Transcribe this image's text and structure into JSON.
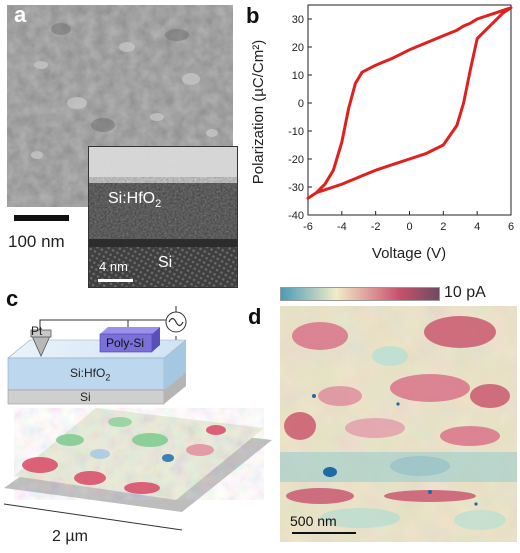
{
  "panels": {
    "a": {
      "letter": "a",
      "sem_scale_label": "100 nm",
      "tem_film_label_main": "Si:HfO",
      "tem_film_label_sub": "2",
      "tem_substrate_label": "Si",
      "tem_scale_label": "4 nm"
    },
    "b": {
      "letter": "b"
    },
    "c": {
      "letter": "c",
      "probe_label": "Pt",
      "electrode_label": "Poly-Si",
      "film_label_main": "Si:HfO",
      "film_label_sub": "2",
      "substrate_label": "Si",
      "scale_label": "2 µm"
    },
    "d": {
      "letter": "d",
      "colorbar_max_label": "10 pA",
      "scale_label": "500 nm"
    }
  },
  "colors": {
    "loop": "#e0201e",
    "colorbar_low": "#4a9bb5",
    "colorbar_mid": "#f1ecc9",
    "colorbar_high": "#c9516b",
    "colorbar_top": "#6f4a63",
    "electrode": "#7b6fd9",
    "film": "#c6dff3"
  },
  "chart_data": {
    "type": "line",
    "title": "",
    "xlabel": "Voltage (V)",
    "ylabel": "Polarization (µC/Cm²)",
    "xlim": [
      -6,
      6
    ],
    "ylim": [
      -40,
      35
    ],
    "xticks": [
      -6,
      -4,
      -2,
      0,
      2,
      4,
      6
    ],
    "yticks": [
      -40,
      -30,
      -20,
      -10,
      0,
      10,
      20,
      30
    ],
    "grid": false,
    "series": [
      {
        "x": [
          -6,
          -5.5,
          -5,
          -4.5,
          -4,
          -3.6,
          -3.2,
          -2.8,
          -2,
          -1,
          0,
          1,
          2,
          2.8,
          3.2,
          3.6,
          4,
          4.5,
          5,
          5.5,
          6,
          5.5,
          5,
          4.5,
          4,
          3.6,
          3.2,
          2.8,
          2,
          1,
          0,
          -1,
          -2,
          -2.8,
          -3.2,
          -3.6,
          -4,
          -4.5,
          -5,
          -5.5,
          -6
        ],
        "y": [
          -34,
          -32,
          -29,
          -24,
          -14,
          -2,
          7,
          11,
          13.5,
          16,
          19,
          21.5,
          24,
          26,
          27.5,
          28.5,
          30,
          31,
          32,
          33,
          34,
          32,
          29,
          26,
          23,
          12,
          0,
          -8,
          -15,
          -18,
          -20,
          -22,
          -24,
          -26,
          -27,
          -28,
          -29,
          -30,
          -31,
          -32,
          -34
        ]
      }
    ]
  }
}
